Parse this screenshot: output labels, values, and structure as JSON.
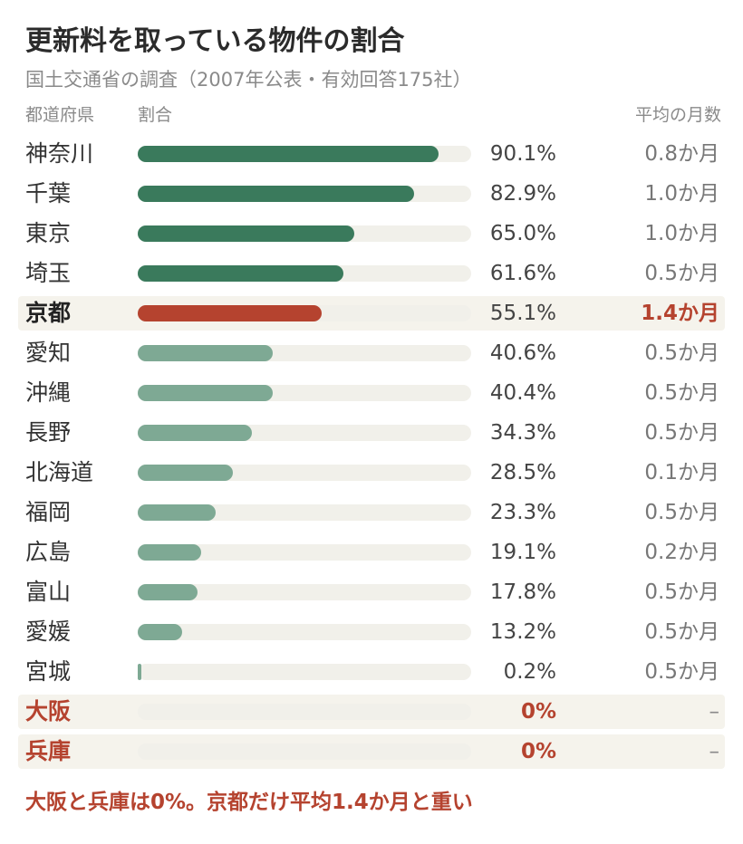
{
  "title": "更新料を取っている物件の割合",
  "subtitle": "国土交通省の調査（2007年公表・有効回答175社）",
  "headers": {
    "prefecture": "都道府県",
    "ratio": "割合",
    "months": "平均の月数"
  },
  "note": "大阪と兵庫は0%。京都だけ平均1.4か月と重い",
  "colors": {
    "top_group": "#3a7a5c",
    "lower_group": "#7ea994",
    "kyoto": "#b5432f",
    "track": "#f1f0ea",
    "highlight_bg": "#f5f3ec"
  },
  "chart_data": {
    "type": "bar",
    "orientation": "horizontal",
    "xlim": [
      0,
      100
    ],
    "categories": [
      "神奈川",
      "千葉",
      "東京",
      "埼玉",
      "京都",
      "愛知",
      "沖縄",
      "長野",
      "北海道",
      "福岡",
      "広島",
      "富山",
      "愛媛",
      "宮城",
      "大阪",
      "兵庫"
    ],
    "values": [
      90.1,
      82.9,
      65.0,
      61.6,
      55.1,
      40.6,
      40.4,
      34.3,
      28.5,
      23.3,
      19.1,
      17.8,
      13.2,
      0.2,
      0,
      0
    ],
    "value_labels": [
      "90.1%",
      "82.9%",
      "65.0%",
      "61.6%",
      "55.1%",
      "40.6%",
      "40.4%",
      "34.3%",
      "28.5%",
      "23.3%",
      "19.1%",
      "17.8%",
      "13.2%",
      "0.2%",
      "0%",
      "0%"
    ],
    "months_labels": [
      "0.8か月",
      "1.0か月",
      "1.0か月",
      "0.5か月",
      "1.4か月",
      "0.5か月",
      "0.5か月",
      "0.5か月",
      "0.1か月",
      "0.5か月",
      "0.2か月",
      "0.5か月",
      "0.5か月",
      "0.5か月",
      "–",
      "–"
    ],
    "group": [
      "top",
      "top",
      "top",
      "top",
      "kyoto",
      "lower",
      "lower",
      "lower",
      "lower",
      "lower",
      "lower",
      "lower",
      "lower",
      "lower",
      "zero",
      "zero"
    ]
  }
}
